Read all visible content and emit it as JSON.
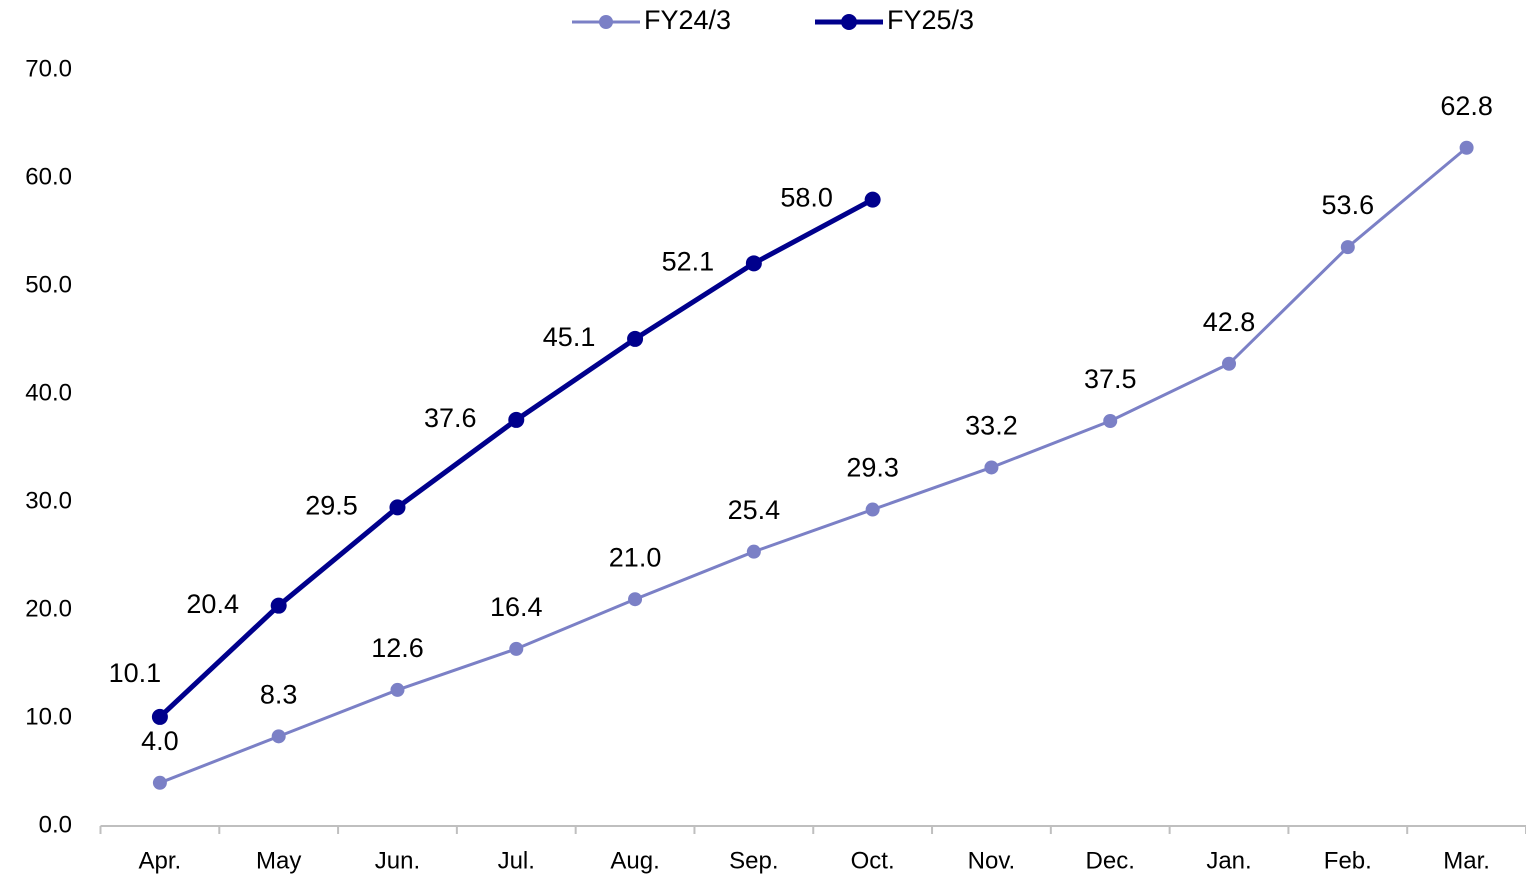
{
  "chart_data": {
    "type": "line",
    "categories": [
      "Apr.",
      "May",
      "Jun.",
      "Jul.",
      "Aug.",
      "Sep.",
      "Oct.",
      "Nov.",
      "Dec.",
      "Jan.",
      "Feb.",
      "Mar."
    ],
    "series": [
      {
        "name": "FY24/3",
        "color": "#7b80c6",
        "values": [
          4.0,
          8.3,
          12.6,
          16.4,
          21.0,
          25.4,
          29.3,
          33.2,
          37.5,
          42.8,
          53.6,
          62.8
        ],
        "value_labels": [
          "4.0",
          "8.3",
          "12.6",
          "16.4",
          "21.0",
          "25.4",
          "29.3",
          "33.2",
          "37.5",
          "42.8",
          "53.6",
          "62.8"
        ]
      },
      {
        "name": "FY25/3",
        "color": "#00008c",
        "values": [
          10.1,
          20.4,
          29.5,
          37.6,
          45.1,
          52.1,
          58.0,
          null,
          null,
          null,
          null,
          null
        ],
        "value_labels": [
          "10.1",
          "20.4",
          "29.5",
          "37.6",
          "45.1",
          "52.1",
          "58.0",
          null,
          null,
          null,
          null,
          null
        ]
      }
    ],
    "ylim": [
      0,
      70
    ],
    "yticks": [
      {
        "value": 0,
        "label": "0.0"
      },
      {
        "value": 10,
        "label": "10.0"
      },
      {
        "value": 20,
        "label": "20.0"
      },
      {
        "value": 30,
        "label": "30.0"
      },
      {
        "value": 40,
        "label": "40.0"
      },
      {
        "value": 50,
        "label": "50.0"
      },
      {
        "value": 60,
        "label": "60.0"
      },
      {
        "value": 70,
        "label": "70.0"
      }
    ],
    "legend": "top"
  }
}
